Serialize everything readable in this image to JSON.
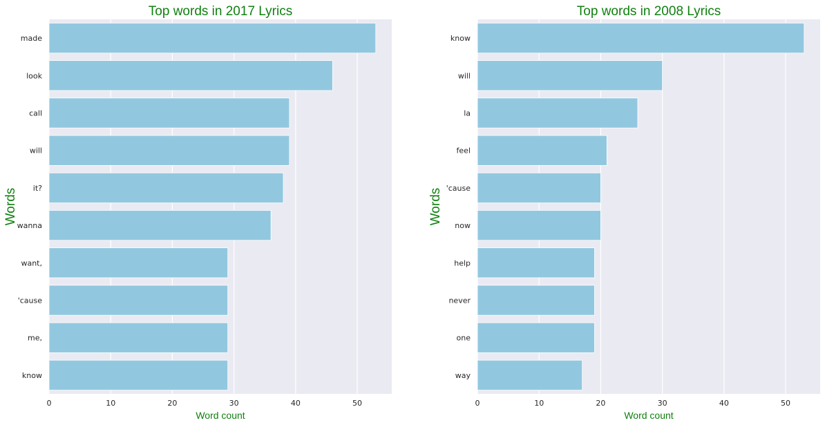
{
  "chart_data": [
    {
      "type": "bar",
      "orientation": "horizontal",
      "title": "Top words in 2017 Lyrics",
      "xlabel": "Word count",
      "ylabel": "Words",
      "categories": [
        "made",
        "look",
        "call",
        "will",
        "it?",
        "wanna",
        "want,",
        "'cause",
        "me,",
        "know"
      ],
      "values": [
        53,
        46,
        39,
        39,
        38,
        36,
        29,
        29,
        29,
        29
      ],
      "xlim": [
        0,
        55.6
      ],
      "xticks": [
        0,
        10,
        20,
        30,
        40,
        50
      ],
      "grid": true,
      "bar_color": "#92C8DF",
      "background_color": "#EAEAF2",
      "label_color": "#108010"
    },
    {
      "type": "bar",
      "orientation": "horizontal",
      "title": "Top words in 2008 Lyrics",
      "xlabel": "Word count",
      "ylabel": "Words",
      "categories": [
        "know",
        "will",
        "la",
        "feel",
        "'cause",
        "now",
        "help",
        "never",
        "one",
        "way"
      ],
      "values": [
        53,
        30,
        26,
        21,
        20,
        20,
        19,
        19,
        19,
        17
      ],
      "xlim": [
        0,
        55.6
      ],
      "xticks": [
        0,
        10,
        20,
        30,
        40,
        50
      ],
      "grid": true,
      "bar_color": "#92C8DF",
      "background_color": "#EAEAF2",
      "label_color": "#108010"
    }
  ]
}
